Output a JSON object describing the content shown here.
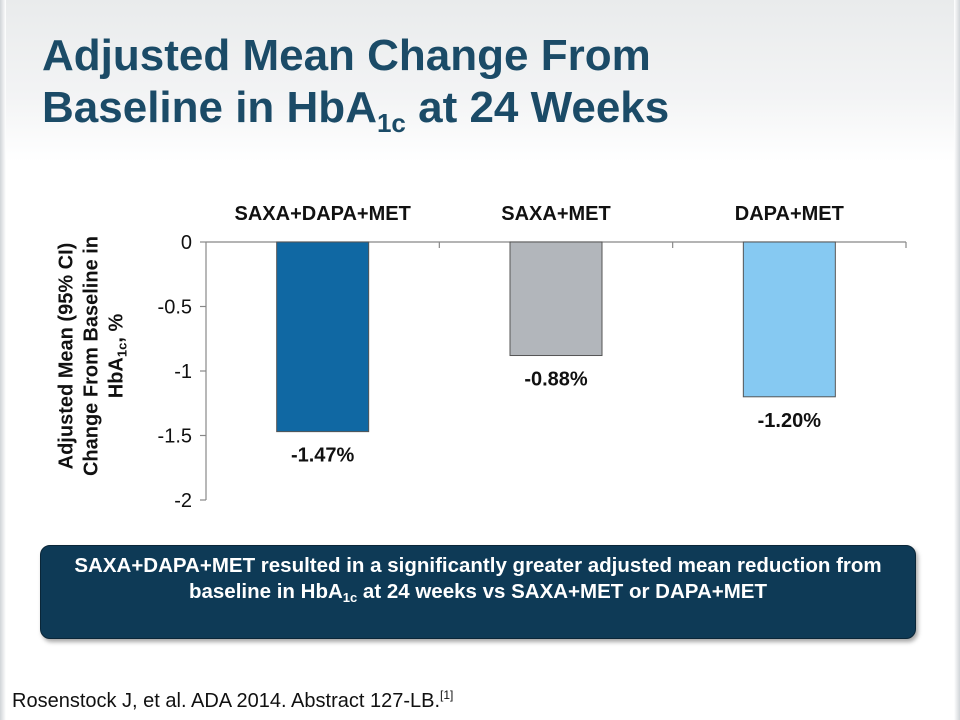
{
  "slide": {
    "title": {
      "line1": "Adjusted Mean Change From",
      "line2_pre": "Baseline in HbA",
      "line2_sub": "1c",
      "line2_post": " at 24 Weeks"
    },
    "callout": {
      "pre": "SAXA+DAPA+MET resulted in a significantly greater adjusted mean reduction from baseline in HbA",
      "sub": "1c",
      "post": " at 24 weeks vs SAXA+MET or DAPA+MET"
    },
    "citation": {
      "text": "Rosenstock J, et al. ADA 2014. Abstract 127-LB.",
      "ref": "[1]"
    },
    "colors": {
      "title": "#1b4b67",
      "callout_bg": "#0e3a56"
    }
  },
  "chart_data": {
    "type": "bar",
    "categories": [
      "SAXA+DAPA+MET",
      "SAXA+MET",
      "DAPA+MET"
    ],
    "values": [
      -1.47,
      -0.88,
      -1.2
    ],
    "value_labels": [
      "-1.47%",
      "-0.88%",
      "-1.20%"
    ],
    "colors": [
      "#1068a3",
      "#b2b6bb",
      "#86c9f2"
    ],
    "ylabel": {
      "line1": "Adjusted Mean (95% CI)",
      "line2": "Change From Baseline in",
      "line3_pre": "HbA",
      "line3_sub": "1c",
      "line3_post": ", %"
    },
    "ylim": [
      -2,
      0
    ],
    "yticks": [
      "0",
      "-0.5",
      "-1",
      "-1.5",
      "-2"
    ],
    "ytick_values": [
      0,
      -0.5,
      -1,
      -1.5,
      -2
    ],
    "category_label_position": "top",
    "legend": "none",
    "grid": false
  }
}
